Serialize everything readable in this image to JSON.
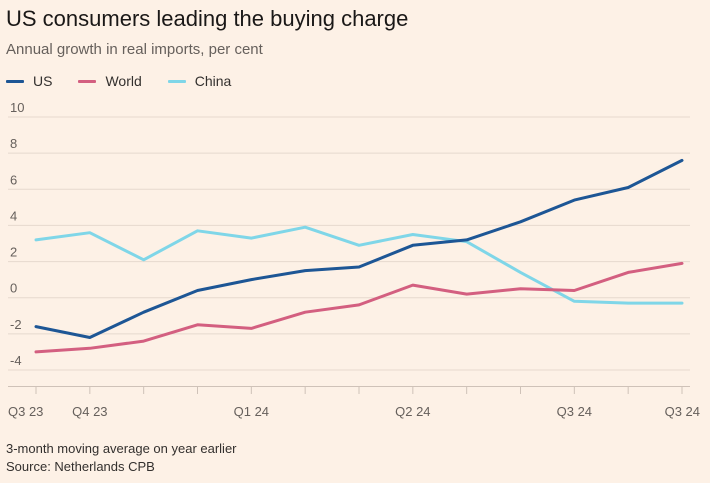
{
  "header": {
    "title": "US consumers leading the buying charge",
    "subtitle": "Annual growth in real imports, per cent"
  },
  "footer": {
    "note": "3-month moving average on year earlier",
    "source": "Source: Netherlands CPB"
  },
  "colors": {
    "background": "#fdf1e6",
    "grid": "#e6d9ce",
    "tick_text": "#66605c"
  },
  "chart_data": {
    "type": "line",
    "x_tick_labels": [
      "Q3 23",
      "Q4 23",
      "Q1 24",
      "Q2 24",
      "Q3 24",
      "Q3 24"
    ],
    "y_ticks": [
      10,
      8,
      6,
      4,
      2,
      0,
      -2,
      -4
    ],
    "ylim": [
      -4.5,
      10
    ],
    "grid": true,
    "legend_position": "top-left",
    "series": [
      {
        "name": "US",
        "color": "#1d5695",
        "values": [
          -1.6,
          -2.2,
          -0.8,
          0.4,
          1.0,
          1.5,
          1.7,
          2.9,
          3.2,
          4.2,
          5.4,
          6.1,
          7.6
        ]
      },
      {
        "name": "World",
        "color": "#d35f80",
        "values": [
          -3.0,
          -2.8,
          -2.4,
          -1.5,
          -1.7,
          -0.8,
          -0.4,
          0.7,
          0.2,
          0.5,
          0.4,
          1.4,
          1.9
        ]
      },
      {
        "name": "China",
        "color": "#7fd6e8",
        "values": [
          3.2,
          3.6,
          2.1,
          3.7,
          3.3,
          3.9,
          2.9,
          3.5,
          3.1,
          1.4,
          -0.2,
          -0.3,
          -0.3
        ]
      }
    ]
  }
}
